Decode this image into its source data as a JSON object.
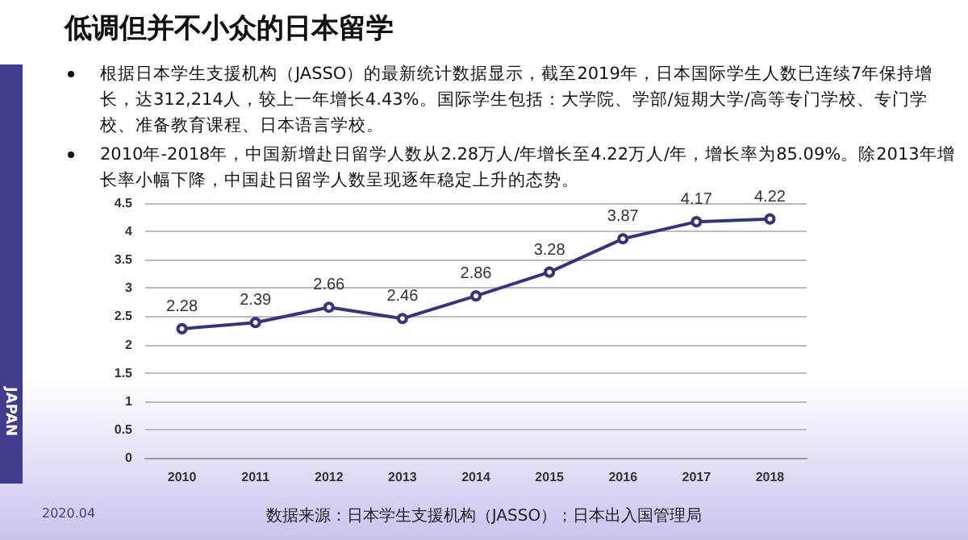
{
  "chart_data": {
    "type": "line",
    "title": "低调但并不小众的日本留学",
    "annotations": [
      "根据日本学生支援机构（JASSO）的最新统计数据显示，截至2019年，日本国际学生人数已连续7年保持增长，达312,214人，较上一年增长4.43%。国际学生包括：大学院、学部/短期大学/高等专门学校、专门学校、准备教育课程、日本语言学校。",
      "2010年-2018年，中国新增赴日留学人数从2.28万人/年增长至4.22万人/年，增长率为85.09%。除2013年增长率小幅下降，中国赴日留学人数呈现逐年稳定上升的态势。",
      "数据来源：日本学生支援机构（JASSO）；日本出入国管理局",
      "2020.04",
      "JAPAN"
    ],
    "categories": [
      "2010",
      "2011",
      "2012",
      "2013",
      "2014",
      "2015",
      "2016",
      "2017",
      "2018"
    ],
    "series": [
      {
        "color": "#36357a",
        "values": [
          2.28,
          2.39,
          2.66,
          2.46,
          2.86,
          3.28,
          3.87,
          4.17,
          4.22
        ]
      }
    ],
    "ylim": [
      0,
      4.5
    ],
    "yticks": [
      0,
      0.5,
      1,
      1.5,
      2,
      2.5,
      3,
      3.5,
      4,
      4.5
    ],
    "grid": "y",
    "marker": "circle",
    "line_style": "solid",
    "data_labels": true
  }
}
